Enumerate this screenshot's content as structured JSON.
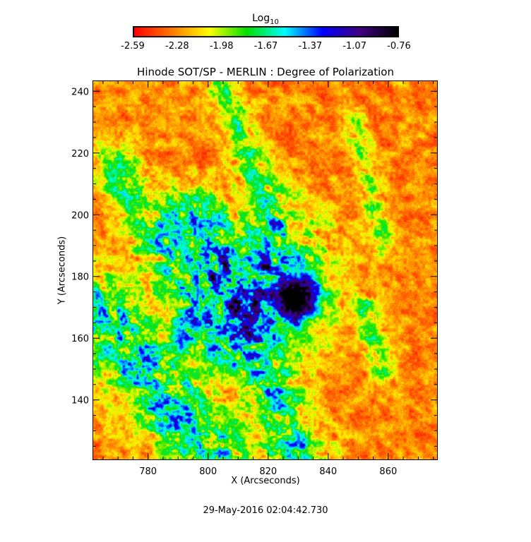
{
  "chart_data": {
    "type": "heatmap",
    "title": "Hinode SOT/SP - MERLIN : Degree of Polarization",
    "xlabel": "X (Arcseconds)",
    "ylabel": "Y (Arcseconds)",
    "xlim": [
      761.5,
      876.5
    ],
    "ylim": [
      120.5,
      243.5
    ],
    "xticks": [
      780,
      800,
      820,
      840,
      860
    ],
    "yticks": [
      140,
      160,
      180,
      200,
      220,
      240
    ],
    "colorbar": {
      "label_base": "Log",
      "label_sub": "10",
      "range": [
        -2.59,
        -0.76
      ],
      "ticks": [
        "-2.59",
        "-2.28",
        "-1.98",
        "-1.67",
        "-1.37",
        "-1.07",
        "-0.76"
      ],
      "colormap": [
        "#ff0000",
        "#ff7a00",
        "#ffff00",
        "#00e000",
        "#00ffff",
        "#0000ff",
        "#400080",
        "#000000"
      ]
    },
    "features": {
      "background_level": -2.5,
      "sunspot_umbra": {
        "x": 829,
        "y": 173,
        "level": -0.9
      },
      "grid": false,
      "legend": "top"
    },
    "timestamp": "29-May-2016 02:04:42.730"
  }
}
